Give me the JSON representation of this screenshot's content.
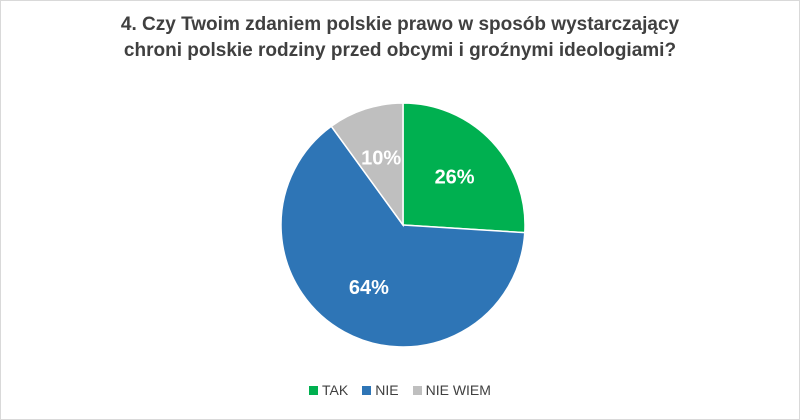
{
  "chart_data": {
    "type": "pie",
    "title_lines": [
      "4. Czy Twoim zdaniem polskie prawo w sposób wystarczający",
      "chroni polskie rodziny przed obcymi i groźnymi ideologiami?"
    ],
    "slices": [
      {
        "label": "TAK",
        "value": 26,
        "display": "26%",
        "color": "#00b050"
      },
      {
        "label": "NIE",
        "value": 64,
        "display": "64%",
        "color": "#2e75b6"
      },
      {
        "label": "NIE WIEM",
        "value": 10,
        "display": "10%",
        "color": "#bfbfbf"
      }
    ],
    "legend_position": "bottom",
    "start_angle": "12 o'clock, clockwise"
  }
}
